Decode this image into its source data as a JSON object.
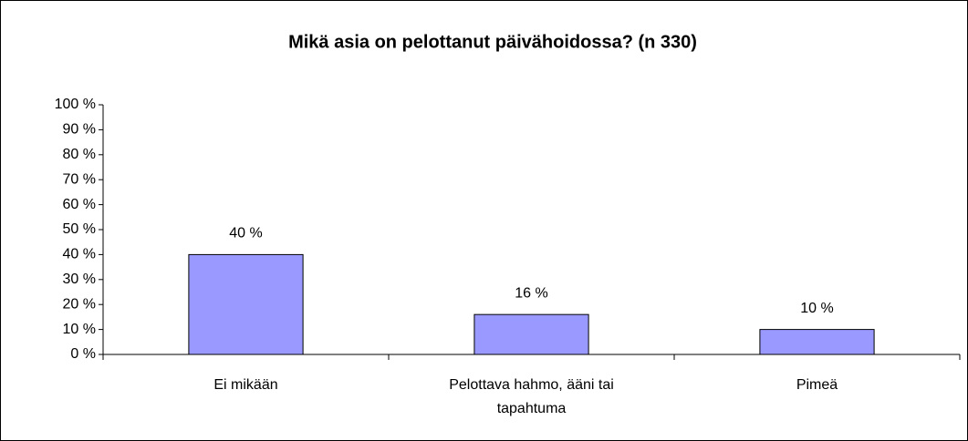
{
  "chart_data": {
    "type": "bar",
    "title": "Mikä asia on pelottanut päivähoidossa? (n 330)",
    "categories": [
      "Ei mikään",
      "Pelottava hahmo, ääni tai tapahtuma",
      "Pimeä"
    ],
    "values": [
      40,
      16,
      10
    ],
    "value_labels": [
      "40 %",
      "16 %",
      "10 %"
    ],
    "color": "#9999ff",
    "ylim": [
      0,
      100
    ],
    "yticks": [
      {
        "value": 0,
        "label": "0 %"
      },
      {
        "value": 10,
        "label": "10 %"
      },
      {
        "value": 20,
        "label": "20 %"
      },
      {
        "value": 30,
        "label": "30 %"
      },
      {
        "value": 40,
        "label": "40 %"
      },
      {
        "value": 50,
        "label": "50 %"
      },
      {
        "value": 60,
        "label": "60 %"
      },
      {
        "value": 70,
        "label": "70 %"
      },
      {
        "value": 80,
        "label": "80 %"
      },
      {
        "value": 90,
        "label": "90 %"
      },
      {
        "value": 100,
        "label": "100 %"
      }
    ],
    "grid": false
  }
}
